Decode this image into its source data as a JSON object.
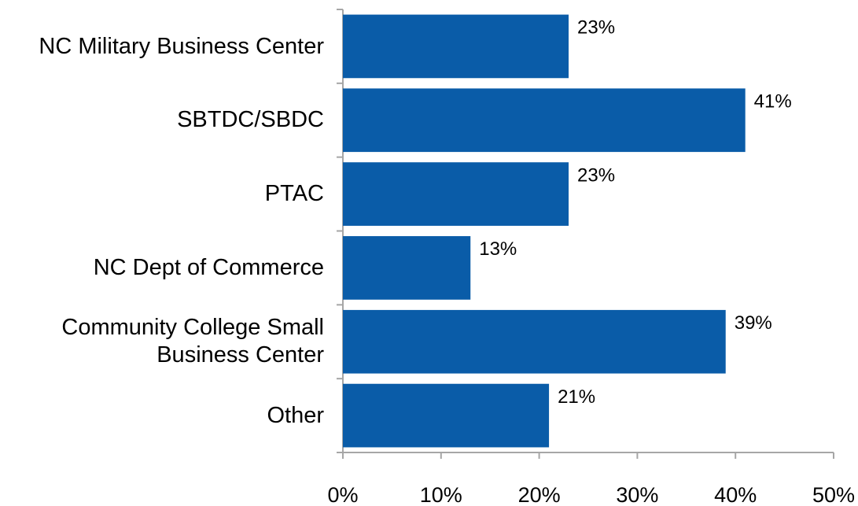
{
  "chart_data": {
    "type": "barh",
    "categories": [
      "NC Military Business Center",
      "SBTDC/SBDC",
      "PTAC",
      "NC Dept of Commerce",
      "Community College Small\nBusiness Center",
      "Other"
    ],
    "values": [
      23,
      41,
      23,
      13,
      39,
      21
    ],
    "value_labels": [
      "23%",
      "41%",
      "23%",
      "13%",
      "39%",
      "21%"
    ],
    "color": "#0a5ca8",
    "xlim": [
      0,
      50
    ],
    "xticks": [
      {
        "value": 0,
        "label": "0%"
      },
      {
        "value": 10,
        "label": "10%"
      },
      {
        "value": 20,
        "label": "20%"
      },
      {
        "value": 30,
        "label": "30%"
      },
      {
        "value": 40,
        "label": "40%"
      },
      {
        "value": 50,
        "label": "50%"
      }
    ],
    "grid": false
  }
}
